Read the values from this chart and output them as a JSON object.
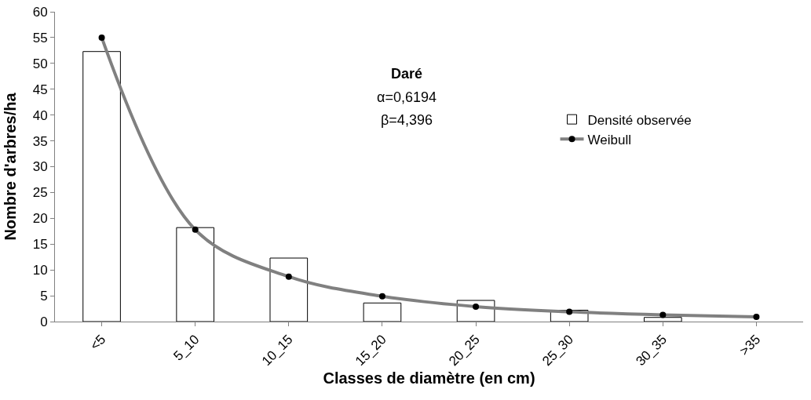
{
  "chart_data": {
    "type": "bar",
    "xlabel": "Classes de diamètre (en cm)",
    "ylabel": "Nombre d'arbres/ha",
    "categories": [
      "<5",
      "5_10",
      "10_15",
      "15_20",
      "20_25",
      "25_30",
      "30_35",
      ">35"
    ],
    "series": [
      {
        "name": "Densité observée",
        "color": "#ffffff",
        "values": [
          52.3,
          18.2,
          12.3,
          3.6,
          4.1,
          2.2,
          0.8,
          0
        ]
      },
      {
        "name": "Weibull",
        "type": "line",
        "color": "#808080",
        "marker": "circle",
        "values": [
          55,
          17.8,
          8.7,
          4.9,
          2.9,
          1.9,
          1.3,
          0.9
        ]
      }
    ],
    "ylim": [
      0,
      60
    ],
    "yticks": [
      0,
      5,
      10,
      15,
      20,
      25,
      30,
      35,
      40,
      45,
      50,
      55,
      60
    ],
    "grid": false,
    "legend": "right",
    "annotations": [
      "Daré",
      "α=0,6194",
      "β=4,396"
    ]
  }
}
